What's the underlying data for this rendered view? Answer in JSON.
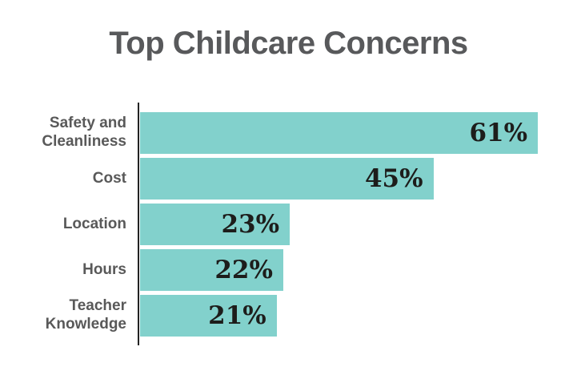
{
  "chart_data": {
    "type": "bar",
    "orientation": "horizontal",
    "title": "Top Childcare Concerns",
    "categories": [
      "Safety and Cleanliness",
      "Cost",
      "Location",
      "Hours",
      "Teacher Knowledge"
    ],
    "values": [
      61,
      45,
      23,
      22,
      21
    ],
    "value_labels": [
      "61%",
      "45%",
      "23%",
      "22%",
      "21%"
    ],
    "xlabel": "",
    "ylabel": "",
    "xlim": [
      0,
      67
    ],
    "grid": false,
    "legend": false,
    "value_labels_position": "inside-end",
    "colors": {
      "bar": "#82d1cc",
      "title": "#58595b",
      "category_label": "#595959",
      "value_label": "#1d1d1b",
      "axis_line": "#232323",
      "background": "#ffffff"
    }
  }
}
